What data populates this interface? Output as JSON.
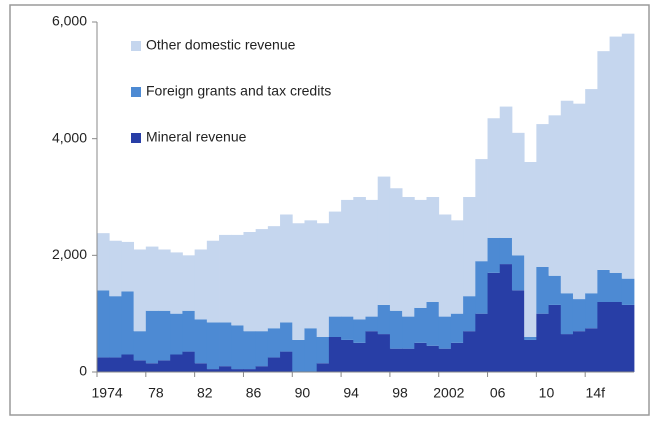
{
  "chart_data": {
    "type": "stacked-bar",
    "categories": [
      "1974",
      null,
      null,
      null,
      "78",
      null,
      null,
      null,
      "82",
      null,
      null,
      null,
      "86",
      null,
      null,
      null,
      "90",
      null,
      null,
      null,
      "94",
      null,
      null,
      null,
      "98",
      null,
      null,
      null,
      "2002",
      null,
      null,
      null,
      "06",
      null,
      null,
      null,
      "10",
      null,
      null,
      null,
      "14f",
      null,
      null,
      null
    ],
    "series": [
      {
        "name": "Other domestic revenue",
        "color": "#c5d6ee",
        "values": [
          980,
          950,
          850,
          1400,
          1100,
          1050,
          1050,
          950,
          1200,
          1400,
          1500,
          1550,
          1700,
          1750,
          1750,
          1850,
          2000,
          1850,
          1950,
          1800,
          2000,
          2100,
          2000,
          2200,
          2100,
          2050,
          1850,
          1800,
          1750,
          1600,
          1700,
          1750,
          2050,
          2250,
          2100,
          3000,
          2450,
          2750,
          3300,
          3350,
          3500,
          3750,
          4050,
          4200
        ]
      },
      {
        "name": "Foreign grants and tax credits",
        "color": "#4d8ad3",
        "values": [
          1150,
          1050,
          1080,
          500,
          900,
          850,
          700,
          700,
          750,
          800,
          750,
          750,
          650,
          600,
          500,
          500,
          550,
          750,
          450,
          350,
          400,
          400,
          250,
          500,
          650,
          550,
          600,
          750,
          550,
          500,
          600,
          900,
          600,
          450,
          600,
          50,
          800,
          500,
          700,
          550,
          600,
          550,
          500,
          450
        ]
      },
      {
        "name": "Mineral revenue",
        "color": "#283ea6",
        "values": [
          250,
          250,
          300,
          200,
          150,
          200,
          300,
          350,
          150,
          50,
          100,
          50,
          50,
          100,
          250,
          350,
          0,
          0,
          150,
          600,
          550,
          500,
          700,
          650,
          400,
          400,
          500,
          450,
          400,
          500,
          700,
          1000,
          1700,
          1850,
          1400,
          550,
          1000,
          1150,
          650,
          700,
          750,
          1200,
          1200,
          1150
        ]
      }
    ],
    "ylim": [
      0,
      6000
    ],
    "yticks": [
      {
        "value": 0,
        "label": "0"
      },
      {
        "value": 2000,
        "label": "2,000"
      },
      {
        "value": 4000,
        "label": "4,000"
      },
      {
        "value": 6000,
        "label": "6,000"
      }
    ],
    "legend": "top-left"
  }
}
